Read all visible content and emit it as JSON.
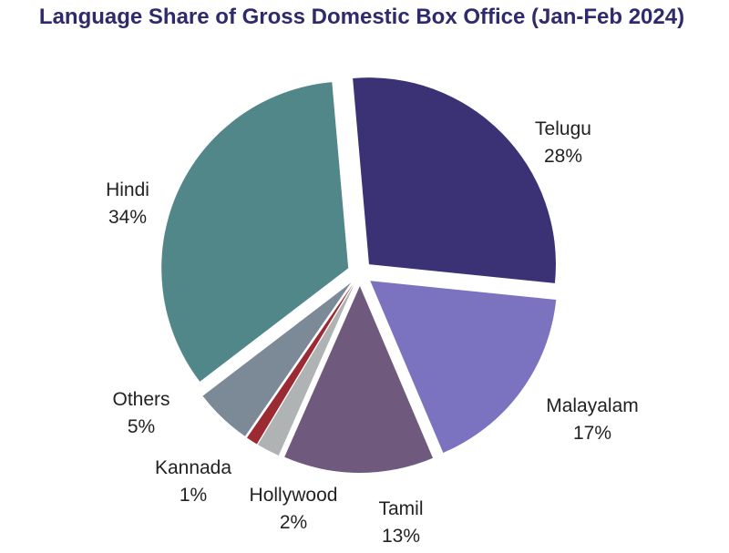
{
  "chart_data": {
    "type": "pie",
    "title": "Language Share of Gross Domestic Box Office (Jan-Feb 2024)",
    "categories": [
      "Telugu",
      "Malayalam",
      "Tamil",
      "Hollywood",
      "Kannada",
      "Others",
      "Hindi"
    ],
    "values": [
      28,
      17,
      13,
      2,
      1,
      5,
      34
    ],
    "value_labels": [
      "28%",
      "17%",
      "13%",
      "2%",
      "1%",
      "5%",
      "34%"
    ],
    "colors": [
      "#3b3275",
      "#7b73c0",
      "#6f5a7e",
      "#b0b3b3",
      "#9b2a33",
      "#7b8a96",
      "#52878a"
    ]
  }
}
